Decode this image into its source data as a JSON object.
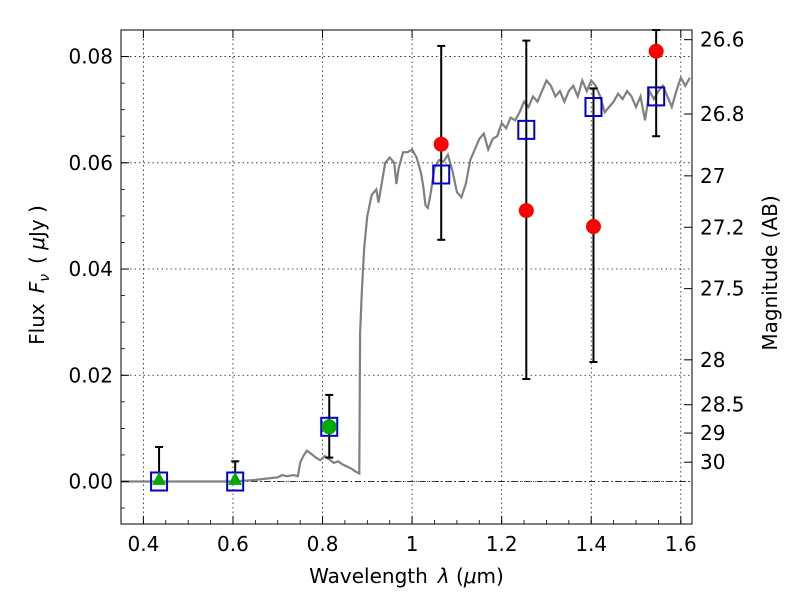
{
  "chart_data": {
    "type": "scatter",
    "xlabel": {
      "main": "Wavelength",
      "lambda": "λ",
      "unit_open": " (",
      "mu": "μ",
      "unit_rest": "m)"
    },
    "ylabel": {
      "main": "Flux",
      "symbol": "F",
      "sub": "ν",
      "unit_open": "( ",
      "mu": "μ",
      "unit_rest": "Jy )"
    },
    "y2label": "Magnitude (AB)",
    "xlim": [
      0.35,
      1.625
    ],
    "ylim": [
      -0.008,
      0.085
    ],
    "x_ticks": [
      0.4,
      0.6,
      0.8,
      1.0,
      1.2,
      1.4,
      1.6
    ],
    "x_tick_labels": [
      "0.4",
      "0.6",
      "0.8",
      "1",
      "1.2",
      "1.4",
      "1.6"
    ],
    "y_ticks": [
      0.0,
      0.02,
      0.04,
      0.06,
      0.08
    ],
    "y_tick_labels": [
      "0.00",
      "0.02",
      "0.04",
      "0.06",
      "0.08"
    ],
    "y2_ticks": [
      {
        "label": "26.6",
        "mag": 26.6
      },
      {
        "label": "26.8",
        "mag": 26.8
      },
      {
        "label": "27",
        "mag": 27.0
      },
      {
        "label": "27.2",
        "mag": 27.2
      },
      {
        "label": "27.5",
        "mag": 27.5
      },
      {
        "label": "28",
        "mag": 28.0
      },
      {
        "label": "28.5",
        "mag": 28.5
      },
      {
        "label": "29",
        "mag": 29.0
      },
      {
        "label": "30",
        "mag": 30.0
      }
    ],
    "grid": true,
    "zero_line": 0.0,
    "series": [
      {
        "kind": "line",
        "color": "#808080",
        "points": [
          [
            0.35,
            0.0
          ],
          [
            0.5,
            0.0
          ],
          [
            0.6,
            0.0
          ],
          [
            0.65,
            0.0003
          ],
          [
            0.7,
            0.0008
          ],
          [
            0.71,
            0.0012
          ],
          [
            0.72,
            0.001
          ],
          [
            0.735,
            0.0012
          ],
          [
            0.745,
            0.001
          ],
          [
            0.75,
            0.0035
          ],
          [
            0.757,
            0.0048
          ],
          [
            0.765,
            0.0058
          ],
          [
            0.775,
            0.0052
          ],
          [
            0.785,
            0.0045
          ],
          [
            0.795,
            0.004
          ],
          [
            0.805,
            0.0048
          ],
          [
            0.815,
            0.0042
          ],
          [
            0.825,
            0.0035
          ],
          [
            0.835,
            0.0038
          ],
          [
            0.845,
            0.0032
          ],
          [
            0.855,
            0.0028
          ],
          [
            0.865,
            0.0024
          ],
          [
            0.875,
            0.0018
          ],
          [
            0.882,
            0.0015
          ],
          [
            0.884,
            0.028
          ],
          [
            0.888,
            0.036
          ],
          [
            0.893,
            0.044
          ],
          [
            0.9,
            0.05
          ],
          [
            0.91,
            0.054
          ],
          [
            0.92,
            0.055
          ],
          [
            0.925,
            0.0525
          ],
          [
            0.93,
            0.055
          ],
          [
            0.94,
            0.06
          ],
          [
            0.95,
            0.061
          ],
          [
            0.96,
            0.06
          ],
          [
            0.965,
            0.056
          ],
          [
            0.97,
            0.059
          ],
          [
            0.98,
            0.062
          ],
          [
            0.99,
            0.062
          ],
          [
            1.0,
            0.0625
          ],
          [
            1.01,
            0.061
          ],
          [
            1.02,
            0.058
          ],
          [
            1.025,
            0.0555
          ],
          [
            1.03,
            0.052
          ],
          [
            1.035,
            0.0515
          ],
          [
            1.04,
            0.0535
          ],
          [
            1.05,
            0.059
          ],
          [
            1.06,
            0.0605
          ],
          [
            1.07,
            0.0602
          ],
          [
            1.08,
            0.0615
          ],
          [
            1.09,
            0.0585
          ],
          [
            1.1,
            0.0545
          ],
          [
            1.11,
            0.0535
          ],
          [
            1.12,
            0.056
          ],
          [
            1.13,
            0.0605
          ],
          [
            1.14,
            0.0625
          ],
          [
            1.15,
            0.0645
          ],
          [
            1.16,
            0.0655
          ],
          [
            1.17,
            0.0625
          ],
          [
            1.18,
            0.0645
          ],
          [
            1.19,
            0.065
          ],
          [
            1.2,
            0.0675
          ],
          [
            1.21,
            0.0665
          ],
          [
            1.22,
            0.0685
          ],
          [
            1.23,
            0.068
          ],
          [
            1.24,
            0.0695
          ],
          [
            1.25,
            0.0715
          ],
          [
            1.26,
            0.0705
          ],
          [
            1.27,
            0.0725
          ],
          [
            1.28,
            0.0715
          ],
          [
            1.29,
            0.0735
          ],
          [
            1.3,
            0.0755
          ],
          [
            1.31,
            0.0745
          ],
          [
            1.32,
            0.0725
          ],
          [
            1.33,
            0.0735
          ],
          [
            1.34,
            0.0715
          ],
          [
            1.35,
            0.0735
          ],
          [
            1.36,
            0.0745
          ],
          [
            1.37,
            0.0725
          ],
          [
            1.38,
            0.0755
          ],
          [
            1.39,
            0.0735
          ],
          [
            1.4,
            0.0755
          ],
          [
            1.41,
            0.0745
          ],
          [
            1.42,
            0.0725
          ],
          [
            1.43,
            0.0695
          ],
          [
            1.44,
            0.0705
          ],
          [
            1.45,
            0.0715
          ],
          [
            1.46,
            0.073
          ],
          [
            1.47,
            0.072
          ],
          [
            1.48,
            0.0735
          ],
          [
            1.49,
            0.0725
          ],
          [
            1.5,
            0.0705
          ],
          [
            1.51,
            0.0725
          ],
          [
            1.52,
            0.068
          ],
          [
            1.53,
            0.0735
          ],
          [
            1.54,
            0.072
          ],
          [
            1.55,
            0.0735
          ],
          [
            1.56,
            0.0745
          ],
          [
            1.57,
            0.0725
          ],
          [
            1.58,
            0.0705
          ],
          [
            1.59,
            0.0735
          ],
          [
            1.6,
            0.076
          ],
          [
            1.61,
            0.0745
          ],
          [
            1.62,
            0.076
          ]
        ]
      },
      {
        "kind": "errorbars",
        "color": "#000000",
        "points": [
          {
            "x": 0.435,
            "y": 0.0,
            "lo": 0.0,
            "hi": 0.0065
          },
          {
            "x": 0.605,
            "y": 0.0,
            "lo": 0.0,
            "hi": 0.0038
          },
          {
            "x": 0.815,
            "y": 0.0103,
            "lo": 0.0045,
            "hi": 0.0163
          },
          {
            "x": 1.065,
            "y": 0.0635,
            "lo": 0.0455,
            "hi": 0.082
          },
          {
            "x": 1.255,
            "y": 0.051,
            "lo": 0.0193,
            "hi": 0.083
          },
          {
            "x": 1.405,
            "y": 0.048,
            "lo": 0.0225,
            "hi": 0.074
          },
          {
            "x": 1.545,
            "y": 0.081,
            "lo": 0.065,
            "hi": 0.085
          }
        ]
      },
      {
        "kind": "squares",
        "color": "#0000cc",
        "points": [
          [
            0.435,
            0.0
          ],
          [
            0.605,
            0.0
          ],
          [
            0.815,
            0.0103
          ],
          [
            1.065,
            0.0578
          ],
          [
            1.255,
            0.0662
          ],
          [
            1.405,
            0.0705
          ],
          [
            1.545,
            0.0725
          ]
        ]
      },
      {
        "kind": "triangles",
        "color": "#00aa00",
        "points": [
          [
            0.435,
            0.0003
          ],
          [
            0.605,
            0.0003
          ]
        ]
      },
      {
        "kind": "green_circles",
        "color": "#00aa00",
        "points": [
          [
            0.815,
            0.0103
          ]
        ]
      },
      {
        "kind": "red_circles",
        "color": "#ff0000",
        "points": [
          [
            1.065,
            0.0635
          ],
          [
            1.255,
            0.051
          ],
          [
            1.405,
            0.048
          ],
          [
            1.545,
            0.081
          ]
        ]
      }
    ]
  }
}
